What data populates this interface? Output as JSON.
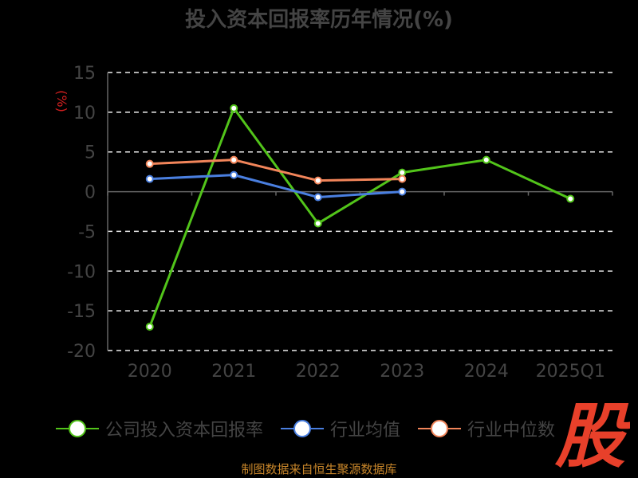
{
  "chart_data": {
    "type": "line",
    "title": "投入资本回报率历年情况(%)",
    "ylabel": "(%)",
    "categories": [
      "2020",
      "2021",
      "2022",
      "2023",
      "2024",
      "2025Q1"
    ],
    "ylim": [
      -20,
      15
    ],
    "yticks": [
      15,
      10,
      5,
      0,
      -5,
      -10,
      -15,
      -20
    ],
    "grid": true,
    "legend_position": "bottom",
    "series": [
      {
        "name": "公司投入资本回报率",
        "color": "#52c41a",
        "values": [
          -17.0,
          10.5,
          -4.0,
          2.4,
          4.0,
          -0.9
        ]
      },
      {
        "name": "行业均值",
        "color": "#4a7fe0",
        "values": [
          1.6,
          2.1,
          -0.7,
          0.0,
          null,
          null
        ]
      },
      {
        "name": "行业中位数",
        "color": "#f2855a",
        "values": [
          3.5,
          4.0,
          1.4,
          1.6,
          null,
          null
        ]
      }
    ]
  },
  "footer": "制图数据来自恒生聚源数据库",
  "brand_text": "股"
}
